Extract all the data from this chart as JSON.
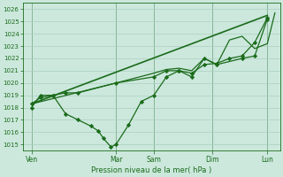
{
  "background_color": "#cce8dd",
  "plot_bg_color": "#cce8dd",
  "grid_color": "#aacfbf",
  "line_color": "#1a6b1a",
  "marker_color": "#1a6b1a",
  "xlabel": "Pression niveau de la mer( hPa )",
  "ylim": [
    1014.5,
    1026.5
  ],
  "yticks": [
    1015,
    1016,
    1017,
    1018,
    1019,
    1020,
    1021,
    1022,
    1023,
    1024,
    1025,
    1026
  ],
  "xlim": [
    -0.2,
    10.0
  ],
  "xtick_labels": [
    "Ven",
    "Mar",
    "Sam",
    "Dim",
    "Lun"
  ],
  "xtick_positions": [
    0.15,
    3.5,
    5.0,
    7.3,
    9.5
  ],
  "vline_positions": [
    0.15,
    3.5,
    5.0,
    7.3,
    9.5
  ],
  "series": [
    {
      "x": [
        0.15,
        0.5,
        1.0,
        1.5,
        2.0,
        3.5,
        5.0,
        5.5,
        6.0,
        6.5,
        7.0,
        7.5,
        8.5,
        9.0,
        9.5
      ],
      "y": [
        1018.3,
        1018.8,
        1019.0,
        1019.2,
        1019.2,
        1020.0,
        1020.5,
        1021.0,
        1021.0,
        1020.5,
        1022.0,
        1021.5,
        1022.0,
        1022.2,
        1025.2
      ],
      "markers": true,
      "linewidth": 0.9
    },
    {
      "x": [
        0.15,
        9.5
      ],
      "y": [
        1018.3,
        1025.5
      ],
      "markers": false,
      "linewidth": 1.2
    },
    {
      "x": [
        0.15,
        3.5,
        5.0,
        5.5,
        6.0,
        6.5,
        7.0,
        7.5,
        8.0,
        8.5,
        9.0,
        9.5,
        9.8
      ],
      "y": [
        1018.3,
        1020.0,
        1020.8,
        1021.1,
        1021.2,
        1021.0,
        1022.0,
        1021.5,
        1023.5,
        1023.8,
        1022.8,
        1023.2,
        1025.7
      ],
      "markers": false,
      "linewidth": 0.9
    },
    {
      "x": [
        0.15,
        0.5,
        1.0,
        1.5,
        2.0,
        2.5,
        2.8,
        3.0,
        3.3,
        3.5,
        4.0,
        4.5,
        5.0,
        5.5,
        6.0,
        6.5,
        7.0,
        7.5,
        8.0,
        8.5,
        9.0,
        9.5
      ],
      "y": [
        1018.0,
        1019.0,
        1019.0,
        1017.5,
        1017.0,
        1016.5,
        1016.1,
        1015.5,
        1014.8,
        1015.0,
        1016.6,
        1018.5,
        1019.0,
        1020.5,
        1021.0,
        1020.8,
        1021.5,
        1021.6,
        1022.0,
        1022.2,
        1023.3,
        1025.3
      ],
      "markers": true,
      "linewidth": 0.9
    }
  ]
}
